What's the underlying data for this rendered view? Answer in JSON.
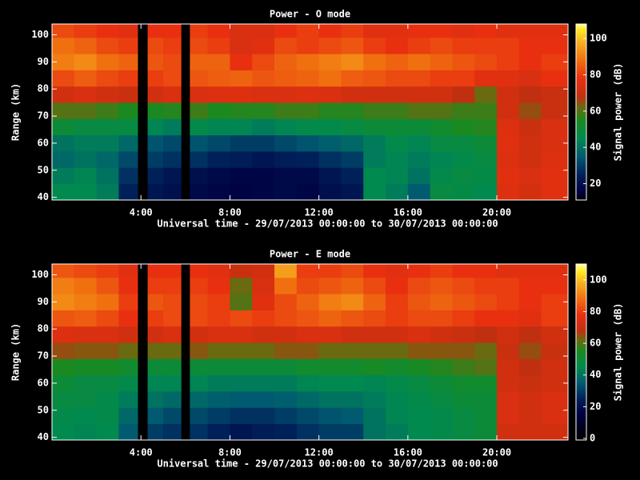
{
  "chart_data": [
    {
      "type": "heatmap",
      "title": "Power - O mode",
      "x_label": "Universal time - 29/07/2013 00:00:00 to 30/07/2013 00:00:00",
      "y_label": "Range (km)",
      "colorbar_label": "Signal power (dB)",
      "x_bins": [
        0,
        1,
        2,
        3,
        3.85,
        4.3,
        5,
        5.8,
        6.2,
        7,
        8,
        9,
        10,
        11,
        12,
        13,
        14,
        15,
        16,
        17,
        18,
        19,
        20,
        21,
        22,
        23.2
      ],
      "y_bins": [
        39,
        45,
        51,
        57,
        63,
        69,
        75,
        81,
        87,
        93,
        99,
        104
      ],
      "values": [
        [
          45,
          45,
          42,
          25,
          null,
          22,
          20,
          null,
          18,
          17,
          16,
          17,
          18,
          17,
          20,
          22,
          45,
          42,
          35,
          48,
          47,
          45,
          75,
          73,
          76
        ],
        [
          42,
          44,
          40,
          28,
          null,
          25,
          22,
          null,
          20,
          18,
          17,
          17,
          18,
          18,
          22,
          25,
          45,
          44,
          40,
          46,
          48,
          47,
          76,
          74,
          76
        ],
        [
          38,
          40,
          38,
          32,
          null,
          30,
          28,
          null,
          28,
          25,
          24,
          22,
          24,
          25,
          28,
          30,
          42,
          44,
          42,
          44,
          46,
          48,
          75,
          72,
          75
        ],
        [
          40,
          42,
          42,
          38,
          null,
          34,
          32,
          null,
          34,
          32,
          30,
          30,
          32,
          34,
          36,
          38,
          42,
          46,
          44,
          48,
          48,
          50,
          76,
          72,
          74
        ],
        [
          50,
          48,
          48,
          48,
          null,
          44,
          42,
          null,
          46,
          44,
          44,
          42,
          44,
          46,
          46,
          48,
          50,
          50,
          50,
          52,
          55,
          56,
          75,
          70,
          74
        ],
        [
          60,
          60,
          58,
          55,
          null,
          55,
          56,
          null,
          58,
          55,
          56,
          56,
          58,
          58,
          56,
          56,
          58,
          58,
          60,
          60,
          58,
          58,
          72,
          65,
          70
        ],
        [
          72,
          74,
          72,
          70,
          null,
          72,
          74,
          null,
          74,
          75,
          75,
          74,
          74,
          75,
          74,
          72,
          72,
          72,
          72,
          72,
          68,
          62,
          72,
          68,
          70
        ],
        [
          82,
          85,
          82,
          80,
          null,
          80,
          82,
          null,
          84,
          85,
          86,
          84,
          85,
          86,
          88,
          85,
          84,
          82,
          82,
          80,
          80,
          76,
          76,
          74,
          78
        ],
        [
          90,
          92,
          88,
          86,
          null,
          84,
          82,
          null,
          86,
          86,
          78,
          82,
          86,
          88,
          90,
          92,
          88,
          86,
          88,
          86,
          84,
          82,
          80,
          78,
          80
        ],
        [
          88,
          86,
          82,
          80,
          null,
          82,
          80,
          null,
          82,
          80,
          74,
          76,
          82,
          80,
          82,
          84,
          80,
          78,
          80,
          82,
          80,
          80,
          80,
          78,
          78
        ],
        [
          82,
          80,
          78,
          76,
          null,
          78,
          78,
          null,
          80,
          78,
          74,
          74,
          78,
          80,
          78,
          80,
          76,
          76,
          78,
          78,
          76,
          78,
          76,
          76,
          76
        ]
      ],
      "xlim": [
        0,
        23.2
      ],
      "ylim": [
        39,
        104
      ],
      "xticks": [
        {
          "value": 4,
          "label": "4:00"
        },
        {
          "value": 8,
          "label": "8:00"
        },
        {
          "value": 12,
          "label": "12:00"
        },
        {
          "value": 16,
          "label": "16:00"
        },
        {
          "value": 20,
          "label": "20:00"
        }
      ],
      "yticks": [
        40,
        50,
        60,
        70,
        80,
        90,
        100
      ],
      "clim": [
        11,
        108
      ],
      "cticks": [
        20,
        40,
        60,
        80,
        100
      ],
      "colormap": [
        {
          "value": 0,
          "color": "#000000"
        },
        {
          "value": 15,
          "color": "#000040"
        },
        {
          "value": 25,
          "color": "#00205a"
        },
        {
          "value": 35,
          "color": "#005a70"
        },
        {
          "value": 45,
          "color": "#008a50"
        },
        {
          "value": 55,
          "color": "#1a8a20"
        },
        {
          "value": 62,
          "color": "#6a6a10"
        },
        {
          "value": 68,
          "color": "#c03010"
        },
        {
          "value": 78,
          "color": "#e83010"
        },
        {
          "value": 88,
          "color": "#f07010"
        },
        {
          "value": 98,
          "color": "#f8b020"
        },
        {
          "value": 105,
          "color": "#ffe820"
        },
        {
          "value": 110,
          "color": "#ffffa0"
        }
      ]
    },
    {
      "type": "heatmap",
      "title": "Power - E mode",
      "x_label": "Universal time - 29/07/2013 00:00:00 to 30/07/2013 00:00:00",
      "y_label": "Range (km)",
      "colorbar_label": "Signal power (dB)",
      "x_bins": [
        0,
        1,
        2,
        3,
        3.85,
        4.3,
        5,
        5.8,
        6.2,
        7,
        8,
        9,
        10,
        11,
        12,
        13,
        14,
        15,
        16,
        17,
        18,
        19,
        20,
        21,
        22,
        23.2
      ],
      "y_bins": [
        39,
        45,
        51,
        57,
        63,
        69,
        75,
        81,
        87,
        93,
        99,
        104
      ],
      "values": [
        [
          45,
          44,
          45,
          35,
          null,
          30,
          28,
          null,
          28,
          25,
          22,
          24,
          25,
          28,
          30,
          30,
          40,
          42,
          45,
          46,
          48,
          50,
          72,
          72,
          72
        ],
        [
          46,
          45,
          46,
          38,
          null,
          35,
          32,
          null,
          32,
          30,
          28,
          28,
          30,
          32,
          34,
          35,
          40,
          44,
          45,
          46,
          48,
          50,
          74,
          72,
          74
        ],
        [
          48,
          48,
          46,
          42,
          null,
          40,
          38,
          null,
          38,
          36,
          35,
          35,
          36,
          38,
          40,
          40,
          42,
          44,
          46,
          48,
          50,
          50,
          74,
          72,
          74
        ],
        [
          50,
          48,
          48,
          46,
          null,
          44,
          44,
          null,
          44,
          42,
          42,
          42,
          42,
          44,
          45,
          45,
          44,
          46,
          48,
          50,
          52,
          52,
          72,
          70,
          72
        ],
        [
          55,
          54,
          54,
          52,
          null,
          50,
          50,
          null,
          50,
          50,
          50,
          50,
          50,
          52,
          52,
          52,
          54,
          52,
          54,
          56,
          58,
          60,
          72,
          68,
          72
        ],
        [
          65,
          64,
          64,
          62,
          null,
          62,
          62,
          null,
          64,
          62,
          62,
          62,
          64,
          64,
          62,
          62,
          62,
          62,
          64,
          64,
          64,
          62,
          70,
          65,
          70
        ],
        [
          75,
          74,
          74,
          72,
          null,
          72,
          74,
          null,
          72,
          74,
          74,
          72,
          72,
          74,
          74,
          72,
          72,
          72,
          74,
          72,
          70,
          68,
          72,
          68,
          72
        ],
        [
          84,
          85,
          82,
          78,
          null,
          80,
          82,
          null,
          82,
          80,
          82,
          80,
          82,
          84,
          86,
          84,
          82,
          80,
          82,
          82,
          80,
          78,
          78,
          76,
          80
        ],
        [
          92,
          90,
          88,
          80,
          null,
          84,
          82,
          null,
          82,
          80,
          60,
          76,
          82,
          86,
          90,
          92,
          86,
          80,
          84,
          86,
          84,
          82,
          80,
          78,
          80
        ],
        [
          90,
          88,
          84,
          78,
          null,
          80,
          80,
          null,
          80,
          78,
          62,
          74,
          88,
          82,
          84,
          86,
          82,
          78,
          82,
          84,
          82,
          80,
          80,
          78,
          78
        ],
        [
          84,
          82,
          80,
          76,
          null,
          78,
          78,
          null,
          78,
          76,
          70,
          72,
          95,
          80,
          80,
          82,
          78,
          76,
          78,
          80,
          78,
          78,
          76,
          76,
          76
        ]
      ],
      "xlim": [
        0,
        23.2
      ],
      "ylim": [
        39,
        104
      ],
      "xticks": [
        {
          "value": 4,
          "label": "4:00"
        },
        {
          "value": 8,
          "label": "8:00"
        },
        {
          "value": 12,
          "label": "12:00"
        },
        {
          "value": 16,
          "label": "16:00"
        },
        {
          "value": 20,
          "label": "20:00"
        }
      ],
      "yticks": [
        40,
        50,
        60,
        70,
        80,
        90,
        100
      ],
      "clim": [
        -1,
        110
      ],
      "cticks": [
        0,
        20,
        40,
        60,
        80,
        100
      ],
      "colormap": [
        {
          "value": 0,
          "color": "#000000"
        },
        {
          "value": 15,
          "color": "#000040"
        },
        {
          "value": 25,
          "color": "#00205a"
        },
        {
          "value": 35,
          "color": "#005a70"
        },
        {
          "value": 45,
          "color": "#008a50"
        },
        {
          "value": 55,
          "color": "#1a8a20"
        },
        {
          "value": 62,
          "color": "#6a6a10"
        },
        {
          "value": 68,
          "color": "#c03010"
        },
        {
          "value": 78,
          "color": "#e83010"
        },
        {
          "value": 88,
          "color": "#f07010"
        },
        {
          "value": 98,
          "color": "#f8b020"
        },
        {
          "value": 105,
          "color": "#ffe820"
        },
        {
          "value": 110,
          "color": "#ffffa0"
        }
      ]
    }
  ]
}
